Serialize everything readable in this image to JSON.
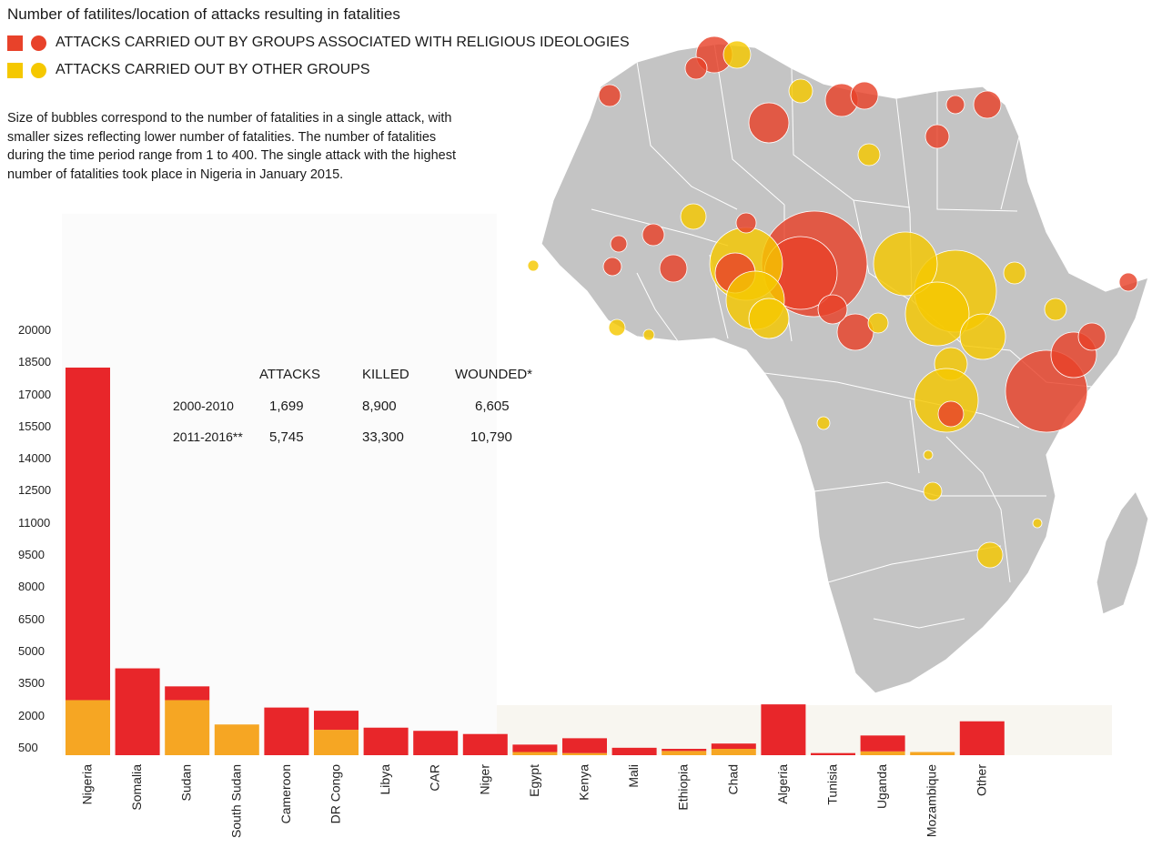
{
  "title": "Number of fatilites/location of attacks resulting in fatalities",
  "legend": [
    {
      "label": "ATTACKS CARRIED OUT BY GROUPS ASSOCIATED WITH RELIGIOUS IDEOLOGIES",
      "color": "#e8422a"
    },
    {
      "label": "ATTACKS CARRIED OUT BY OTHER GROUPS",
      "color": "#f5c800"
    }
  ],
  "note": "Size of bubbles correspond to the number of fatalities in a single attack, with smaller sizes reflecting lower number of fatalities. The number of fatalities during the time period range from 1 to 400. The single attack with the highest number of fatalities took place in Nigeria in January 2015.",
  "stats": {
    "headers": [
      "ATTACKS",
      "KILLED",
      "WOUNDED*"
    ],
    "rows": [
      {
        "period": "2000-2010",
        "attacks": "1,699",
        "killed": "8,900",
        "wounded": "6,605"
      },
      {
        "period": "2011-2016**",
        "attacks": "5,745",
        "killed": "33,300",
        "wounded": "10,790"
      }
    ]
  },
  "chart_data": {
    "type": "bar",
    "stacked": true,
    "y_ticks": [
      "20000",
      "18500",
      "17000",
      "15500",
      "14000",
      "12500",
      "11000",
      "9500",
      "8000",
      "6500",
      "5000",
      "3500",
      "2000",
      "500"
    ],
    "ylim": [
      0,
      20000
    ],
    "categories": [
      "Nigeria",
      "Somalia",
      "Sudan",
      "South Sudan",
      "Cameroon",
      "DR Congo",
      "Libya",
      "CAR",
      "Niger",
      "Egypt",
      "Kenya",
      "Mali",
      "Ethiopia",
      "Chad",
      "Algeria",
      "Tunisia",
      "Uganda",
      "Mozambique",
      "Other"
    ],
    "series": [
      {
        "color": "#f6a623",
        "values": [
          2600,
          0,
          2600,
          1450,
          0,
          1200,
          0,
          0,
          0,
          150,
          100,
          0,
          200,
          300,
          0,
          0,
          180,
          150,
          0
        ]
      },
      {
        "color": "#e8262a",
        "values": [
          15700,
          4100,
          650,
          0,
          2250,
          900,
          1300,
          1150,
          1000,
          350,
          700,
          350,
          100,
          250,
          2400,
          100,
          750,
          0,
          1600
        ]
      }
    ]
  },
  "map": {
    "colors": {
      "land": "#c4c4c4",
      "religious": "#e8422a",
      "other": "#f5c800",
      "border": "#ffffff"
    }
  }
}
